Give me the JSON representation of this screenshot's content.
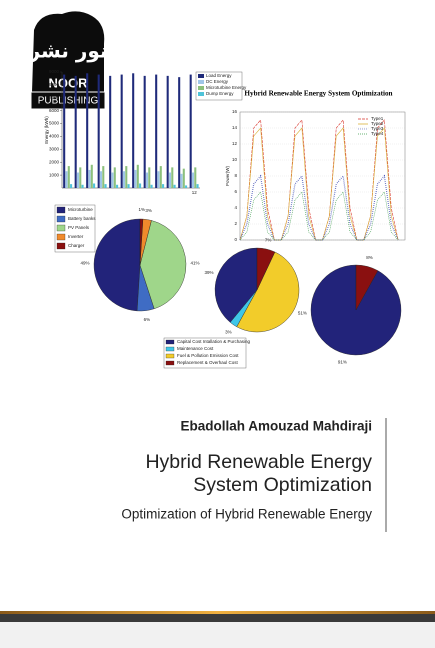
{
  "logo": {
    "arabic": "نور نشر",
    "name": "NOOR",
    "subname": "PUBLISHING"
  },
  "author": "Ebadollah Amouzad Mahdiraji",
  "title_lines": [
    "Hybrid Renewable Energy",
    "System Optimization"
  ],
  "subtitle": "Optimization of Hybrid Renewable Energy",
  "chart_data": [
    {
      "type": "bar",
      "y_label": "Energy (kWh)",
      "categories": [
        null,
        null,
        null,
        null,
        null,
        null,
        null,
        null,
        null,
        null,
        null,
        "12"
      ],
      "ylim": [
        0,
        9000
      ],
      "yticks": [
        1000,
        2000,
        3000,
        4000,
        5000,
        6000,
        7000,
        8000,
        9000
      ],
      "series": [
        {
          "name": "Load Energy",
          "color": "#1f2a7a",
          "values": [
            8800,
            8700,
            8900,
            8800,
            8700,
            8800,
            8900,
            8700,
            8800,
            8700,
            8600,
            8800
          ]
        },
        {
          "name": "DC Energy",
          "color": "#9fc6e8",
          "values": [
            1300,
            1200,
            1400,
            1300,
            1200,
            1300,
            1400,
            1200,
            1300,
            1200,
            1100,
            1200
          ]
        },
        {
          "name": "Microturbine Energy",
          "color": "#8cc07c",
          "values": [
            1700,
            1600,
            1800,
            1700,
            1600,
            1700,
            1800,
            1600,
            1700,
            1600,
            1500,
            1600
          ]
        },
        {
          "name": "Dump Energy",
          "color": "#4fc3d9",
          "values": [
            300,
            250,
            350,
            300,
            250,
            300,
            350,
            250,
            300,
            250,
            200,
            300
          ]
        }
      ]
    },
    {
      "type": "line",
      "title": "Hybrid Renewable Energy System Optimization",
      "y_label": "Power(W)",
      "x": [
        0,
        1,
        2,
        3,
        4,
        5,
        6,
        7,
        8,
        9,
        10,
        11,
        12,
        13,
        14,
        15,
        16,
        17,
        18,
        19,
        20,
        21,
        22,
        23
      ],
      "xlim": [
        0,
        24
      ],
      "ylim": [
        0,
        16
      ],
      "yticks": [
        0,
        2,
        4,
        6,
        8,
        10,
        12,
        14,
        16
      ],
      "series": [
        {
          "name": "Type1",
          "color": "#d9342b",
          "values": [
            0,
            3,
            14,
            15,
            4,
            0,
            0,
            3,
            14,
            15,
            4,
            0,
            0,
            3,
            14,
            15,
            4,
            0,
            0,
            3,
            14,
            15,
            4,
            0
          ]
        },
        {
          "name": "Type2",
          "color": "#d9b23a",
          "values": [
            0,
            3,
            13,
            14,
            3,
            0,
            0,
            3,
            13,
            14,
            3,
            0,
            0,
            3,
            13,
            14,
            3,
            0,
            0,
            3,
            13,
            14,
            3,
            0
          ]
        },
        {
          "name": "Type3",
          "color": "#2233aa",
          "values": [
            0,
            2,
            7,
            8,
            2,
            0,
            0,
            2,
            7,
            8,
            2,
            0,
            0,
            2,
            7,
            8,
            2,
            0,
            0,
            2,
            7,
            8,
            2,
            0
          ]
        },
        {
          "name": "Type4",
          "color": "#3a9a4a",
          "values": [
            0,
            1,
            5,
            6,
            1,
            0,
            0,
            1,
            5,
            6,
            1,
            0,
            0,
            1,
            5,
            6,
            1,
            0,
            0,
            1,
            5,
            6,
            1,
            0
          ]
        }
      ]
    },
    {
      "type": "pie",
      "categories": [
        "Microturbine",
        "Battery banks",
        "PV Panels",
        "Inverter",
        "Charger"
      ],
      "values": [
        49,
        6,
        41,
        3,
        1
      ],
      "value_labels": [
        "49%",
        "6%",
        "41%",
        "3%",
        "1%"
      ],
      "colors": [
        "#22237a",
        "#3f6cc4",
        "#9fd68a",
        "#f08a2c",
        "#8a1010"
      ]
    },
    {
      "type": "pie",
      "categories": [
        "Capital Cost Intallation & Purchasing",
        "Maintenance Cost",
        "Fuel & Pollution Emission Cost",
        "Replacement & Overhaul Cost"
      ],
      "values": [
        39,
        3,
        51,
        7
      ],
      "value_labels": [
        "39%",
        "3%",
        "51%",
        "7%"
      ],
      "colors": [
        "#22237a",
        "#3fc6e8",
        "#f2cc2a",
        "#8a1010"
      ]
    },
    {
      "type": "pie",
      "values": [
        91,
        8
      ],
      "value_labels": [
        "91%",
        "8%"
      ],
      "colors": [
        "#22237a",
        "#8a1010"
      ]
    }
  ]
}
